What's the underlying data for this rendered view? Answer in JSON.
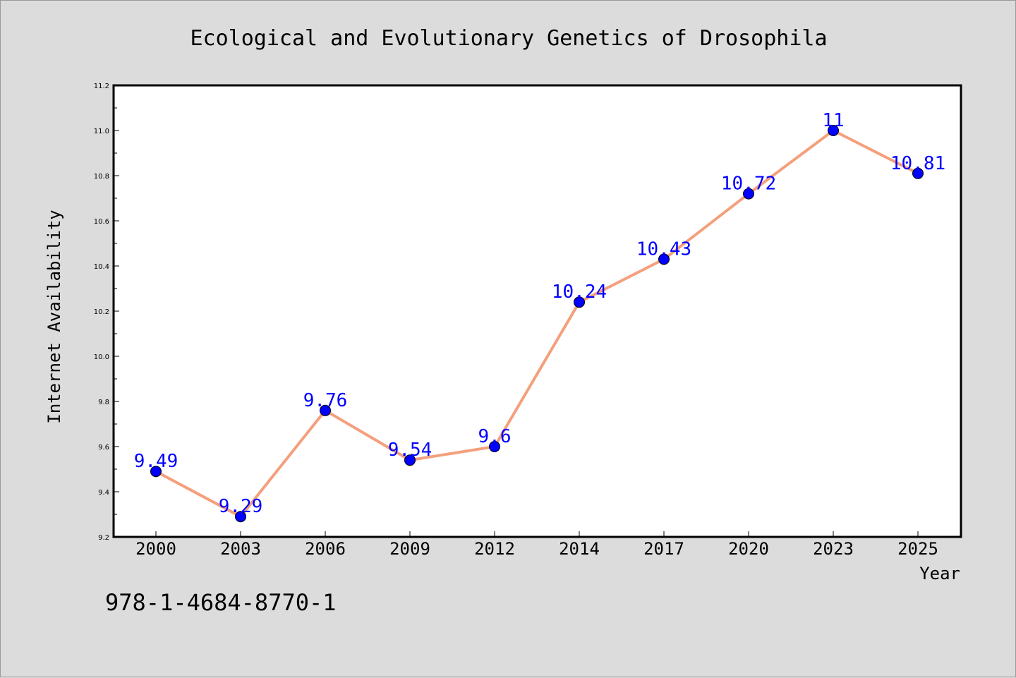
{
  "chart_data": {
    "type": "line",
    "title": "Ecological and Evolutionary Genetics of Drosophila",
    "xlabel": "Year",
    "ylabel": "Internet Availability",
    "categories": [
      "2000",
      "2003",
      "2006",
      "2009",
      "2012",
      "2014",
      "2017",
      "2020",
      "2023",
      "2025"
    ],
    "series": [
      {
        "values": [
          9.49,
          9.29,
          9.76,
          9.54,
          9.6,
          10.24,
          10.43,
          10.72,
          11,
          10.81
        ],
        "data_labels": [
          "9.49",
          "9.29",
          "9.76",
          "9.54",
          "9.6",
          "10.24",
          "10.43",
          "10.72",
          "11",
          "10.81"
        ],
        "line_color": "#f4a07c",
        "marker_color": "#0000ff"
      }
    ],
    "ylim": [
      9.2,
      11.2
    ],
    "yticks": [
      "9.2",
      "9.4",
      "9.6",
      "9.8",
      "10.0",
      "10.2",
      "10.4",
      "10.6",
      "10.8",
      "11.0",
      "11.2"
    ],
    "grid": false,
    "legend": "none"
  },
  "annotation": "978-1-4684-8770-1",
  "colors": {
    "background": "#dcdcdc",
    "plot_area": "#ffffff",
    "data_label": "#0000ff"
  }
}
